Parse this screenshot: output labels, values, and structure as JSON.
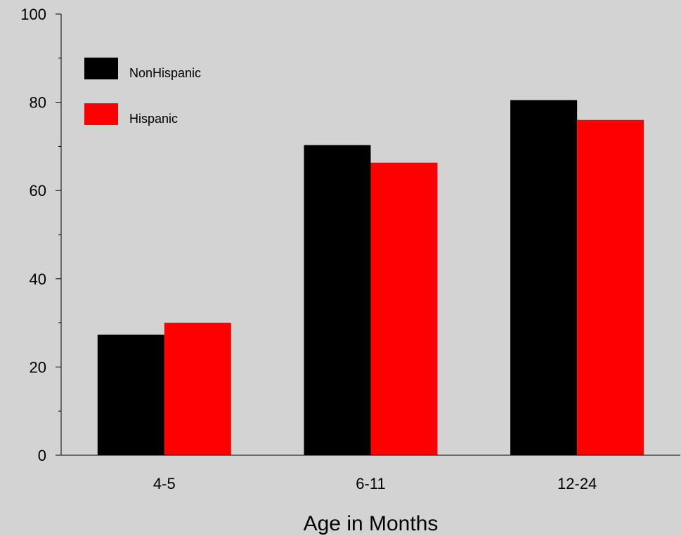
{
  "chart_data": {
    "type": "bar",
    "categories": [
      "4-5",
      "6-11",
      "12-24"
    ],
    "series": [
      {
        "name": "NonHispanic",
        "values": [
          27.3,
          70.3,
          80.5
        ],
        "color": "#000000"
      },
      {
        "name": "Hispanic",
        "values": [
          30.0,
          66.3,
          76.0
        ],
        "color": "#ff0000"
      }
    ],
    "xlabel": "Age in Months",
    "ylabel": "",
    "ylim": [
      0,
      100
    ],
    "yticks": [
      "0",
      "20",
      "40",
      "60",
      "80",
      "100"
    ],
    "minor_ytick_step": 10,
    "grid": false,
    "legend_placement": "top-left",
    "background": "#d3d3d3"
  }
}
